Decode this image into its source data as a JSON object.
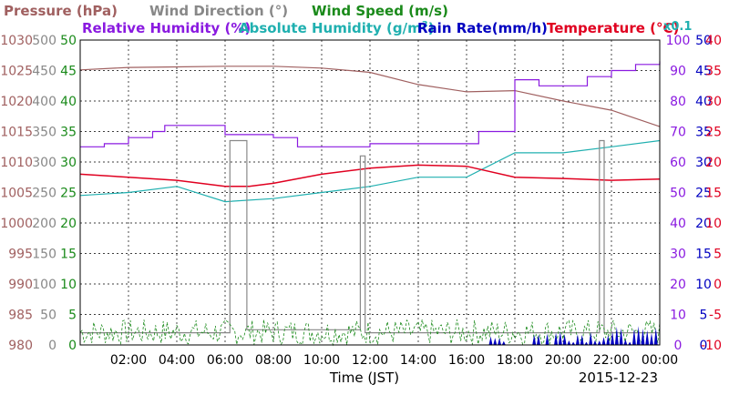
{
  "chart_data": {
    "type": "line",
    "legend": {
      "row1": [
        {
          "label": "Pressure (hPa)",
          "color": "#a06060"
        },
        {
          "label": "Wind Direction (°)",
          "color": "#888888"
        },
        {
          "label": "Wind Speed (m/s)",
          "color": "#1a8a1a"
        }
      ],
      "row2": [
        {
          "label": "Relative Humidity (%)",
          "color": "#8a1ae0"
        },
        {
          "label": "Absolute Humidity (g/m",
          "sup": "3",
          "tail": ")",
          "color": "#20b0b0"
        },
        {
          "label": "Rain Rate(mm/h)",
          "color": "#0000c0"
        },
        {
          "label": "Temperature (°C)",
          "color": "#e00020"
        }
      ],
      "x01": {
        "label": "x0.1",
        "color": "#20b0b0"
      }
    },
    "xlabel": "Time (JST)",
    "date": "2015-12-23",
    "x_ticks": [
      "02:00",
      "04:00",
      "06:00",
      "08:00",
      "10:00",
      "12:00",
      "14:00",
      "16:00",
      "18:00",
      "20:00",
      "22:00",
      "00:00"
    ],
    "axes": {
      "pressure": {
        "color": "#a06060",
        "ticks": [
          "1030",
          "1025",
          "1020",
          "1015",
          "1010",
          "1005",
          "1000",
          "995",
          "990",
          "985",
          "980"
        ]
      },
      "wind_direction": {
        "color": "#888888",
        "ticks": [
          "500",
          "450",
          "400",
          "350",
          "300",
          "250",
          "200",
          "150",
          "100",
          "50",
          "0"
        ]
      },
      "wind_speed": {
        "color": "#1a8a1a",
        "ticks": [
          "50",
          "45",
          "40",
          "35",
          "30",
          "25",
          "20",
          "15",
          "10",
          "5",
          "0"
        ]
      },
      "humidity": {
        "color": "#8a1ae0",
        "ticks": [
          "100",
          "90",
          "80",
          "70",
          "60",
          "50",
          "40",
          "30",
          "20",
          "10",
          "0"
        ]
      },
      "rain": {
        "color": "#0000c0",
        "ticks": [
          "50",
          "45",
          "40",
          "35",
          "30",
          "25",
          "20",
          "15",
          "10",
          "5",
          "0"
        ]
      },
      "temperature": {
        "color": "#e00020",
        "ticks": [
          "40",
          "35",
          "30",
          "25",
          "20",
          "15",
          "10",
          "5",
          "0",
          "-5",
          "-10"
        ]
      }
    },
    "ylim": {
      "pressure": [
        980,
        1030
      ],
      "humidity": [
        0,
        100
      ],
      "temperature": [
        -10,
        40
      ],
      "abs_humidity_x01": [
        0,
        100
      ],
      "wind_direction": [
        0,
        500
      ]
    },
    "series": [
      {
        "name": "Pressure (hPa)",
        "color": "#a06060",
        "x": [
          0,
          2,
          4,
          6,
          8,
          10,
          12,
          14,
          16,
          18,
          20,
          22,
          24
        ],
        "y": [
          1025.1,
          1025.5,
          1025.6,
          1025.7,
          1025.7,
          1025.4,
          1024.7,
          1022.7,
          1021.5,
          1021.7,
          1020.0,
          1018.5,
          1015.8
        ]
      },
      {
        "name": "Relative Humidity (%)",
        "color": "#8a1ae0",
        "x": [
          0,
          1,
          2,
          3,
          3.5,
          5.5,
          6,
          8,
          9,
          10,
          12,
          14,
          16,
          16.5,
          18,
          19,
          21,
          22,
          23,
          24
        ],
        "y": [
          65,
          66,
          68,
          70,
          72,
          72,
          69,
          68,
          65,
          65,
          66,
          66,
          66,
          70,
          87,
          85,
          88,
          90,
          92,
          93
        ]
      },
      {
        "name": "Absolute Humidity (x0.1)",
        "color": "#20b0b0",
        "x": [
          0,
          2,
          4,
          6,
          8,
          10,
          12,
          14,
          16,
          18,
          20,
          22,
          24
        ],
        "y": [
          49,
          50,
          52,
          47,
          48,
          50,
          52,
          55,
          55,
          63,
          63,
          65,
          67
        ]
      },
      {
        "name": "Temperature (°C)",
        "color": "#e00020",
        "x": [
          0,
          2,
          4,
          6,
          7,
          8,
          10,
          12,
          14,
          16,
          18,
          20,
          22,
          24
        ],
        "y": [
          18.0,
          17.5,
          17.0,
          16.0,
          16.0,
          16.5,
          18.0,
          19.0,
          19.5,
          19.3,
          17.5,
          17.3,
          17.0,
          17.2
        ]
      },
      {
        "name": "Wind Direction (°)",
        "color": "#888888",
        "x": [
          0,
          6.2,
          6.2,
          6.9,
          6.9,
          11.6,
          11.6,
          11.8,
          11.8,
          21.5,
          21.5,
          21.7,
          21.7,
          24
        ],
        "y": [
          20,
          20,
          335,
          335,
          25,
          25,
          310,
          310,
          20,
          20,
          335,
          335,
          20,
          20
        ]
      }
    ],
    "wind_speed_note": "noisy green dashed trace between 0 and 5 m/s",
    "rain_note": "blue spikes from about 17:00 to 24:00, up to about 3 mm/h"
  }
}
